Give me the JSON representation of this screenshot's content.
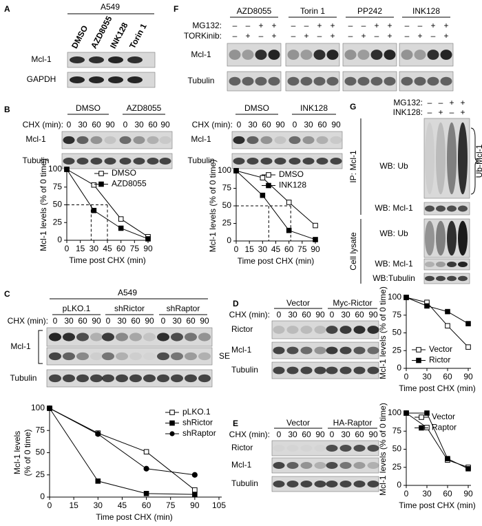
{
  "panels": {
    "A": {
      "letter": "A",
      "cell_line": "A549",
      "lanes": [
        "DMSO",
        "AZD8055",
        "INK128",
        "Torin 1"
      ],
      "rows": [
        "Mcl-1",
        "GAPDH"
      ]
    },
    "F": {
      "letter": "F",
      "groups": [
        "AZD8055",
        "Torin 1",
        "PP242",
        "INK128"
      ],
      "treatments": [
        {
          "name": "MG132:",
          "signs": [
            "–",
            "–",
            "+",
            "+"
          ]
        },
        {
          "name": "TORKinib:",
          "signs": [
            "–",
            "+",
            "–",
            "+"
          ]
        }
      ],
      "rows": [
        "Mcl-1",
        "Tubulin"
      ]
    },
    "B": {
      "letter": "B",
      "left": {
        "groups": [
          "DMSO",
          "AZD8055"
        ],
        "chx_label": "CHX (min):",
        "times": [
          0,
          30,
          60,
          90
        ],
        "rows": [
          "Mcl-1",
          "Tubulin"
        ]
      },
      "right": {
        "groups": [
          "DMSO",
          "INK128"
        ],
        "chx_label": "CHX (min):",
        "times": [
          0,
          30,
          60,
          90
        ],
        "rows": [
          "Mcl-1",
          "Tubulin"
        ]
      }
    },
    "G": {
      "letter": "G",
      "treatments": [
        {
          "name": "MG132:",
          "signs": [
            "–",
            "–",
            "+",
            "+"
          ]
        },
        {
          "name": "INK128:",
          "signs": [
            "–",
            "+",
            "–",
            "+"
          ]
        }
      ],
      "sections": [
        "IP: Mcl-1",
        "Cell lysate"
      ],
      "rows": [
        "WB: Ub",
        "WB: Mcl-1",
        "WB: Ub",
        "WB: Mcl-1",
        "WB:Tubulin"
      ],
      "bracket": "Ub-Mcl-1"
    },
    "C": {
      "letter": "C",
      "cell_line": "A549",
      "groups": [
        "pLKO.1",
        "shRictor",
        "shRaptor"
      ],
      "chx_label": "CHX (min):",
      "times": [
        0,
        30,
        60,
        90
      ],
      "rows": [
        "Mcl-1",
        "Tubulin"
      ],
      "se": "SE"
    },
    "D": {
      "letter": "D",
      "groups": [
        "Vector",
        "Myc-Rictor"
      ],
      "chx_label": "CHX (min):",
      "times": [
        0,
        30,
        60,
        90
      ],
      "rows": [
        "Rictor",
        "Mcl-1",
        "Tubulin"
      ]
    },
    "E": {
      "letter": "E",
      "groups": [
        "Vector",
        "HA-Raptor"
      ],
      "chx_label": "CHX (min):",
      "times": [
        0,
        30,
        60,
        90
      ],
      "rows": [
        "Rictor",
        "Mcl-1",
        "Tubulin"
      ]
    }
  },
  "chart_data": [
    {
      "type": "line",
      "x": [
        0,
        30,
        60,
        90
      ],
      "xlim": [
        0,
        90
      ],
      "xticks": [
        0,
        15,
        30,
        45,
        60,
        75,
        90
      ],
      "ylim": [
        0,
        100
      ],
      "yticks": [
        0,
        25,
        50,
        75,
        100
      ],
      "xlabel": "Time post CHX (min)",
      "ylabel": "Mcl-1 levels (% of 0 time)",
      "legend": "upper right",
      "series": [
        {
          "name": "DMSO",
          "color": "#000000",
          "marker": "square-open",
          "values": [
            100,
            78,
            30,
            5
          ]
        },
        {
          "name": "AZD8055",
          "color": "#000000",
          "marker": "square",
          "values": [
            100,
            42,
            17,
            2
          ]
        }
      ],
      "half_life": {
        "y": 50,
        "x": [
          27,
          45
        ]
      }
    },
    {
      "type": "line",
      "x": [
        0,
        30,
        60,
        90
      ],
      "xlim": [
        0,
        90
      ],
      "xticks": [
        0,
        15,
        30,
        45,
        60,
        75,
        90
      ],
      "ylim": [
        0,
        100
      ],
      "yticks": [
        0,
        25,
        50,
        75,
        100
      ],
      "xlabel": "Time post CHX (min)",
      "ylabel": "Mcl-1 levels (% of 0 time)",
      "legend": "upper right",
      "series": [
        {
          "name": "DMSO",
          "color": "#000000",
          "marker": "square-open",
          "values": [
            100,
            90,
            55,
            22
          ]
        },
        {
          "name": "INK128",
          "color": "#000000",
          "marker": "square",
          "values": [
            100,
            65,
            15,
            2
          ]
        }
      ],
      "half_life": {
        "y": 50,
        "x": [
          37,
          62
        ]
      }
    },
    {
      "type": "line",
      "x": [
        0,
        30,
        60,
        90
      ],
      "xlim": [
        0,
        105
      ],
      "xticks": [
        0,
        15,
        30,
        45,
        60,
        75,
        90,
        105
      ],
      "ylim": [
        0,
        100
      ],
      "yticks": [
        0,
        25,
        50,
        75,
        100
      ],
      "xlabel": "Time post CHX (min)",
      "ylabel": [
        "Mcl-1 levels",
        "(% of 0 time)"
      ],
      "legend": "upper right",
      "series": [
        {
          "name": "pLKO.1",
          "color": "#000000",
          "marker": "square-open",
          "values": [
            100,
            72,
            51,
            8
          ]
        },
        {
          "name": "shRictor",
          "color": "#000000",
          "marker": "square",
          "values": [
            100,
            18,
            4,
            3
          ]
        },
        {
          "name": "shRaptor",
          "color": "#000000",
          "marker": "circle",
          "values": [
            100,
            71,
            32,
            25
          ]
        }
      ]
    },
    {
      "type": "line",
      "x": [
        0,
        30,
        60,
        90
      ],
      "xlim": [
        0,
        90
      ],
      "xticks": [
        0,
        30,
        60,
        90
      ],
      "ylim": [
        0,
        100
      ],
      "yticks": [
        0,
        25,
        50,
        75,
        100
      ],
      "xlabel": "Time post CHX (min)",
      "ylabel": "Mcl-1 levels (% of 0 time)",
      "legend": "lower left",
      "series": [
        {
          "name": "Vector",
          "color": "#000000",
          "marker": "square-open",
          "values": [
            100,
            93,
            60,
            30
          ]
        },
        {
          "name": "Rictor",
          "color": "#000000",
          "marker": "square",
          "values": [
            100,
            88,
            80,
            63
          ]
        }
      ]
    },
    {
      "type": "line",
      "x": [
        0,
        30,
        60,
        90
      ],
      "xlim": [
        0,
        90
      ],
      "xticks": [
        0,
        30,
        60,
        90
      ],
      "ylim": [
        0,
        100
      ],
      "yticks": [
        0,
        25,
        50,
        75,
        100
      ],
      "xlabel": "Time post CHX (min)",
      "ylabel": "Mcl-1 levels (% of 0 time)",
      "legend": "upper right",
      "series": [
        {
          "name": "Vector",
          "color": "#000000",
          "marker": "square-open",
          "values": [
            100,
            80,
            35,
            25
          ]
        },
        {
          "name": "Raptor",
          "color": "#000000",
          "marker": "square",
          "values": [
            100,
            100,
            37,
            23
          ]
        }
      ]
    }
  ]
}
